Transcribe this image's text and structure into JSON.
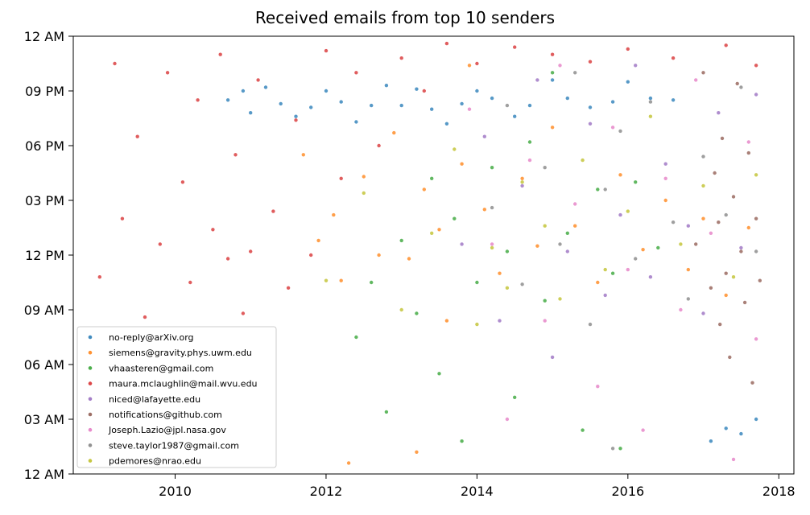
{
  "chart_data": {
    "type": "scatter",
    "title": "Received emails from top 10 senders",
    "xlabel": "",
    "ylabel": "",
    "x_ticks": [
      "2010",
      "2012",
      "2014",
      "2016",
      "2018"
    ],
    "x_tick_values": [
      2010,
      2012,
      2014,
      2016,
      2018
    ],
    "xlim": [
      2008.65,
      2018.2
    ],
    "y_ticks": [
      "12 AM",
      "03 AM",
      "06 AM",
      "09 AM",
      "12 PM",
      "03 PM",
      "06 PM",
      "09 PM",
      "12 AM"
    ],
    "y_tick_values": [
      0,
      3,
      6,
      9,
      12,
      15,
      18,
      21,
      24
    ],
    "ylim": [
      0,
      24
    ],
    "x_unit": "year",
    "y_unit": "hour of day",
    "grid": false,
    "legend_position": "lower-left",
    "series": [
      {
        "name": "no-reply@arXiv.org",
        "color": "#1f77b4",
        "points": [
          [
            2010.7,
            20.5
          ],
          [
            2010.9,
            21.0
          ],
          [
            2011.0,
            19.8
          ],
          [
            2011.2,
            21.2
          ],
          [
            2011.4,
            20.3
          ],
          [
            2011.6,
            19.6
          ],
          [
            2011.8,
            20.1
          ],
          [
            2012.0,
            21.0
          ],
          [
            2012.2,
            20.4
          ],
          [
            2012.4,
            19.3
          ],
          [
            2012.6,
            20.2
          ],
          [
            2012.8,
            21.3
          ],
          [
            2013.0,
            20.2
          ],
          [
            2013.2,
            21.1
          ],
          [
            2013.4,
            20.0
          ],
          [
            2013.6,
            19.2
          ],
          [
            2013.8,
            20.3
          ],
          [
            2014.0,
            21.0
          ],
          [
            2014.2,
            20.6
          ],
          [
            2014.5,
            19.6
          ],
          [
            2014.7,
            20.2
          ],
          [
            2015.0,
            21.6
          ],
          [
            2015.2,
            20.6
          ],
          [
            2015.5,
            20.1
          ],
          [
            2015.8,
            20.4
          ],
          [
            2016.0,
            21.5
          ],
          [
            2016.3,
            20.6
          ],
          [
            2016.6,
            20.5
          ],
          [
            2017.1,
            1.8
          ],
          [
            2017.3,
            2.5
          ],
          [
            2017.5,
            2.2
          ],
          [
            2017.7,
            3.0
          ]
        ]
      },
      {
        "name": "siemens@gravity.phys.uwm.edu",
        "color": "#ff7f0e",
        "points": [
          [
            2011.7,
            17.5
          ],
          [
            2011.9,
            12.8
          ],
          [
            2012.1,
            14.2
          ],
          [
            2012.2,
            10.6
          ],
          [
            2012.5,
            16.3
          ],
          [
            2012.7,
            12.0
          ],
          [
            2012.9,
            18.7
          ],
          [
            2013.1,
            11.8
          ],
          [
            2013.3,
            15.6
          ],
          [
            2013.5,
            13.4
          ],
          [
            2013.6,
            8.4
          ],
          [
            2013.8,
            17.0
          ],
          [
            2013.9,
            22.4
          ],
          [
            2014.1,
            14.5
          ],
          [
            2014.3,
            11.0
          ],
          [
            2014.6,
            16.2
          ],
          [
            2014.8,
            12.5
          ],
          [
            2015.0,
            19.0
          ],
          [
            2015.3,
            13.6
          ],
          [
            2015.6,
            10.5
          ],
          [
            2015.9,
            16.4
          ],
          [
            2016.2,
            12.3
          ],
          [
            2016.5,
            15.0
          ],
          [
            2016.8,
            11.2
          ],
          [
            2017.0,
            14.0
          ],
          [
            2017.3,
            9.8
          ],
          [
            2017.6,
            13.5
          ],
          [
            2012.3,
            0.6
          ],
          [
            2013.2,
            1.2
          ]
        ]
      },
      {
        "name": "vhaasteren@gmail.com",
        "color": "#2ca02c",
        "points": [
          [
            2012.4,
            7.5
          ],
          [
            2012.6,
            10.5
          ],
          [
            2012.8,
            3.4
          ],
          [
            2013.0,
            12.8
          ],
          [
            2013.2,
            8.8
          ],
          [
            2013.4,
            16.2
          ],
          [
            2013.5,
            5.5
          ],
          [
            2013.7,
            14.0
          ],
          [
            2013.8,
            1.8
          ],
          [
            2014.0,
            10.5
          ],
          [
            2014.2,
            16.8
          ],
          [
            2014.4,
            12.2
          ],
          [
            2014.5,
            4.2
          ],
          [
            2014.7,
            18.2
          ],
          [
            2014.9,
            9.5
          ],
          [
            2015.0,
            22.0
          ],
          [
            2015.2,
            13.2
          ],
          [
            2015.4,
            2.4
          ],
          [
            2015.6,
            15.6
          ],
          [
            2015.8,
            11.0
          ],
          [
            2015.9,
            1.4
          ],
          [
            2016.1,
            16.0
          ],
          [
            2016.4,
            12.4
          ]
        ]
      },
      {
        "name": "maura.mclaughlin@mail.wvu.edu",
        "color": "#d62728",
        "points": [
          [
            2009.0,
            10.8
          ],
          [
            2009.2,
            22.5
          ],
          [
            2009.3,
            14.0
          ],
          [
            2009.5,
            18.5
          ],
          [
            2009.6,
            8.6
          ],
          [
            2009.8,
            12.6
          ],
          [
            2009.9,
            22.0
          ],
          [
            2010.1,
            16.0
          ],
          [
            2010.2,
            10.5
          ],
          [
            2010.3,
            20.5
          ],
          [
            2010.5,
            13.4
          ],
          [
            2010.6,
            23.0
          ],
          [
            2010.7,
            11.8
          ],
          [
            2010.8,
            17.5
          ],
          [
            2010.9,
            8.8
          ],
          [
            2011.0,
            12.2
          ],
          [
            2011.1,
            21.6
          ],
          [
            2011.3,
            14.4
          ],
          [
            2011.5,
            10.2
          ],
          [
            2011.6,
            19.4
          ],
          [
            2011.8,
            12.0
          ],
          [
            2012.0,
            23.2
          ],
          [
            2012.2,
            16.2
          ],
          [
            2012.4,
            22.0
          ],
          [
            2012.7,
            18.0
          ],
          [
            2013.0,
            22.8
          ],
          [
            2013.3,
            21.0
          ],
          [
            2013.6,
            23.6
          ],
          [
            2014.0,
            22.5
          ],
          [
            2014.5,
            23.4
          ],
          [
            2015.0,
            23.0
          ],
          [
            2015.5,
            22.6
          ],
          [
            2016.0,
            23.3
          ],
          [
            2016.6,
            22.8
          ],
          [
            2017.3,
            23.5
          ],
          [
            2017.7,
            22.4
          ]
        ]
      },
      {
        "name": "niced@lafayette.edu",
        "color": "#9467bd",
        "points": [
          [
            2013.8,
            12.6
          ],
          [
            2014.1,
            18.5
          ],
          [
            2014.3,
            8.4
          ],
          [
            2014.6,
            15.8
          ],
          [
            2014.8,
            21.6
          ],
          [
            2015.0,
            6.4
          ],
          [
            2015.2,
            12.2
          ],
          [
            2015.5,
            19.2
          ],
          [
            2015.7,
            9.8
          ],
          [
            2015.9,
            14.2
          ],
          [
            2016.1,
            22.4
          ],
          [
            2016.3,
            10.8
          ],
          [
            2016.5,
            17.0
          ],
          [
            2016.8,
            13.6
          ],
          [
            2017.0,
            8.8
          ],
          [
            2017.2,
            19.8
          ],
          [
            2017.5,
            12.4
          ],
          [
            2017.7,
            20.8
          ]
        ]
      },
      {
        "name": "notifications@github.com",
        "color": "#8c564b",
        "points": [
          [
            2016.9,
            12.6
          ],
          [
            2017.0,
            22.0
          ],
          [
            2017.1,
            10.2
          ],
          [
            2017.15,
            16.5
          ],
          [
            2017.2,
            13.8
          ],
          [
            2017.22,
            8.2
          ],
          [
            2017.25,
            18.4
          ],
          [
            2017.3,
            11.0
          ],
          [
            2017.35,
            6.4
          ],
          [
            2017.4,
            15.2
          ],
          [
            2017.45,
            21.4
          ],
          [
            2017.5,
            12.2
          ],
          [
            2017.55,
            9.4
          ],
          [
            2017.6,
            17.6
          ],
          [
            2017.65,
            5.0
          ],
          [
            2017.7,
            14.0
          ],
          [
            2017.75,
            10.6
          ]
        ]
      },
      {
        "name": "Joseph.Lazio@jpl.nasa.gov",
        "color": "#e377c2",
        "points": [
          [
            2013.9,
            20.0
          ],
          [
            2014.2,
            12.6
          ],
          [
            2014.4,
            3.0
          ],
          [
            2014.7,
            17.2
          ],
          [
            2014.9,
            8.4
          ],
          [
            2015.1,
            22.4
          ],
          [
            2015.3,
            14.8
          ],
          [
            2015.6,
            4.8
          ],
          [
            2015.8,
            19.0
          ],
          [
            2016.0,
            11.2
          ],
          [
            2016.2,
            2.4
          ],
          [
            2016.5,
            16.2
          ],
          [
            2016.7,
            9.0
          ],
          [
            2016.9,
            21.6
          ],
          [
            2017.1,
            13.2
          ],
          [
            2017.4,
            0.8
          ],
          [
            2017.6,
            18.2
          ],
          [
            2017.7,
            7.4
          ]
        ]
      },
      {
        "name": "steve.taylor1987@gmail.com",
        "color": "#7f7f7f",
        "points": [
          [
            2014.2,
            14.6
          ],
          [
            2014.4,
            20.2
          ],
          [
            2014.6,
            10.4
          ],
          [
            2014.9,
            16.8
          ],
          [
            2015.1,
            12.6
          ],
          [
            2015.3,
            22.0
          ],
          [
            2015.5,
            8.2
          ],
          [
            2015.7,
            15.6
          ],
          [
            2015.8,
            1.4
          ],
          [
            2015.9,
            18.8
          ],
          [
            2016.1,
            11.8
          ],
          [
            2016.3,
            20.4
          ],
          [
            2016.6,
            13.8
          ],
          [
            2016.8,
            9.6
          ],
          [
            2017.0,
            17.4
          ],
          [
            2017.3,
            14.2
          ],
          [
            2017.5,
            21.2
          ],
          [
            2017.7,
            12.2
          ]
        ]
      },
      {
        "name": "pdemores@nrao.edu",
        "color": "#bcbd22",
        "points": [
          [
            2012.0,
            10.6
          ],
          [
            2012.5,
            15.4
          ],
          [
            2013.0,
            9.0
          ],
          [
            2013.4,
            13.2
          ],
          [
            2013.7,
            17.8
          ],
          [
            2014.0,
            8.2
          ],
          [
            2014.2,
            12.4
          ],
          [
            2014.4,
            10.2
          ],
          [
            2014.6,
            16.0
          ],
          [
            2014.9,
            13.6
          ],
          [
            2015.1,
            9.6
          ],
          [
            2015.4,
            17.2
          ],
          [
            2015.7,
            11.2
          ],
          [
            2016.0,
            14.4
          ],
          [
            2016.3,
            19.6
          ],
          [
            2016.7,
            12.6
          ],
          [
            2017.0,
            15.8
          ],
          [
            2017.4,
            10.8
          ],
          [
            2017.7,
            16.4
          ]
        ]
      }
    ]
  }
}
